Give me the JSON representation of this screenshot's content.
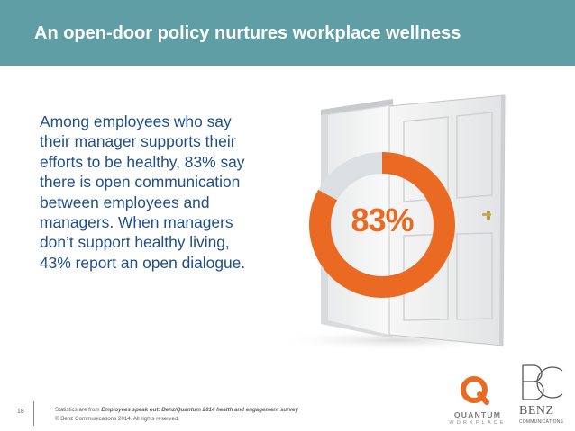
{
  "title": "An open-door policy nurtures workplace wellness",
  "body_lines": [
    "Among employees who say",
    "their manager supports their",
    "efforts to be healthy, 83% say",
    "there is open communication",
    "between employees and",
    "managers. When managers",
    "don’t support healthy living,",
    "43% report an open dialogue."
  ],
  "stat": {
    "label": "83%",
    "value_percent": 83
  },
  "colors": {
    "title_bar": "#5e9ea4",
    "body_text": "#1f4f86",
    "accent_orange": "#ea6a24",
    "ring_track": "#dcdfe2"
  },
  "footer": {
    "page_number": "18",
    "source_prefix": "Statistics are from ",
    "source_title": "Employees speak out: Benz/Quantum 2014 health and engagement survey",
    "copyright": "© Benz Communications 2014. All rights reserved."
  },
  "logos": {
    "quantum_name": "QUANTUM",
    "quantum_sub": "WORKPLACE",
    "benz_name": "BENZ",
    "benz_sub": "COMMUNICATIONS"
  },
  "icons": {
    "door": "open-door-illustration",
    "quantum": "quantum-q-icon",
    "benz": "benz-bc-monogram-icon"
  }
}
